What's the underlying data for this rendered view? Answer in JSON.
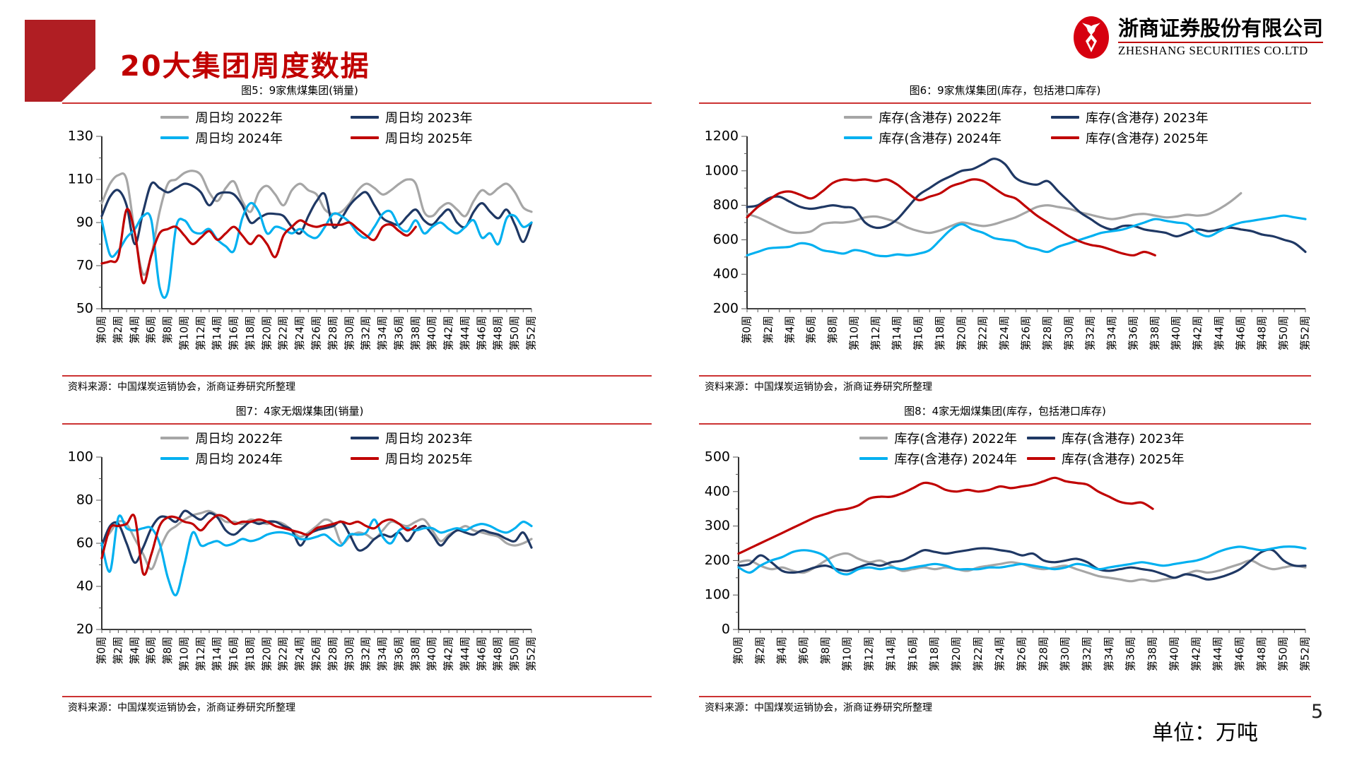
{
  "page": {
    "title": "20大集团周度数据",
    "unit_note": "单位：万吨",
    "page_number": "5",
    "logo": {
      "cn": "浙商证券股份有限公司",
      "en": "ZHESHANG SECURITIES CO.LTD"
    }
  },
  "colors": {
    "accent_red": "#c00000",
    "divider_red": "#cc3333",
    "gray": "#a6a6a6",
    "navy": "#1f3864",
    "cyan": "#00b0f0",
    "red": "#c00000"
  },
  "chart_data": [
    {
      "type": "line",
      "title": "图5：9家焦煤集团(销量)",
      "source": "资料来源：中国煤炭运销协会，浙商证券研究所整理",
      "xlabel": "",
      "ylabel": "",
      "ylim": [
        50,
        130
      ],
      "ytick_step": 20,
      "grid": false,
      "legend_position": "top",
      "x_tick_labels": [
        "第0周",
        "第2周",
        "第4周",
        "第6周",
        "第8周",
        "第10周",
        "第12周",
        "第14周",
        "第16周",
        "第18周",
        "第20周",
        "第22周",
        "第24周",
        "第26周",
        "第28周",
        "第30周",
        "第32周",
        "第34周",
        "第36周",
        "第38周",
        "第40周",
        "第42周",
        "第44周",
        "第46周",
        "第48周",
        "第50周",
        "第52周"
      ],
      "series": [
        {
          "name": "周日均 2022年",
          "color_key": "gray",
          "values": [
            99,
            108,
            112,
            110,
            85,
            66,
            75,
            95,
            108,
            110,
            113,
            114,
            112,
            104,
            100,
            106,
            109,
            100,
            95,
            104,
            107,
            103,
            98,
            105,
            108,
            105,
            103,
            96,
            94,
            95,
            99,
            105,
            108,
            106,
            103,
            105,
            108,
            110,
            108,
            95,
            93,
            97,
            99,
            96,
            93,
            100,
            105,
            103,
            106,
            108,
            104,
            97,
            95
          ]
        },
        {
          "name": "周日均 2023年",
          "color_key": "navy",
          "values": [
            93,
            102,
            105,
            98,
            80,
            95,
            108,
            106,
            104,
            106,
            108,
            107,
            104,
            98,
            103,
            104,
            103,
            98,
            90,
            92,
            94,
            94,
            93,
            88,
            85,
            93,
            100,
            103,
            88,
            92,
            98,
            102,
            104,
            98,
            92,
            90,
            89,
            93,
            96,
            91,
            89,
            93,
            96,
            90,
            88,
            95,
            99,
            95,
            92,
            96,
            89,
            81,
            90
          ]
        },
        {
          "name": "周日均 2024年",
          "color_key": "cyan",
          "values": [
            91,
            75,
            77,
            83,
            87,
            93,
            91,
            60,
            58,
            88,
            91,
            86,
            85,
            87,
            82,
            79,
            77,
            92,
            99,
            95,
            85,
            88,
            87,
            85,
            87,
            84,
            83,
            88,
            94,
            93,
            90,
            85,
            83,
            88,
            94,
            95,
            88,
            86,
            91,
            85,
            88,
            90,
            87,
            85,
            88,
            91,
            83,
            85,
            80,
            92,
            93,
            88,
            90
          ]
        },
        {
          "name": "周日均 2025年",
          "color_key": "red",
          "values": [
            71,
            72,
            74,
            96,
            85,
            62,
            75,
            85,
            87,
            88,
            84,
            80,
            83,
            86,
            82,
            85,
            88,
            84,
            80,
            84,
            80,
            74,
            84,
            88,
            91,
            89,
            88,
            89,
            89,
            89,
            90,
            87,
            84,
            82,
            88,
            89,
            86,
            84,
            88
          ]
        }
      ]
    },
    {
      "type": "line",
      "title": "图6：9家焦煤集团(库存，包括港口库存)",
      "source": "资料来源：中国煤炭运销协会，浙商证券研究所整理",
      "xlabel": "",
      "ylabel": "",
      "ylim": [
        200,
        1200
      ],
      "ytick_step": 200,
      "grid": false,
      "legend_position": "top",
      "x_tick_labels": [
        "第0周",
        "第2周",
        "第4周",
        "第6周",
        "第8周",
        "第10周",
        "第12周",
        "第14周",
        "第16周",
        "第18周",
        "第20周",
        "第22周",
        "第24周",
        "第26周",
        "第28周",
        "第30周",
        "第32周",
        "第34周",
        "第36周",
        "第38周",
        "第40周",
        "第42周",
        "第44周",
        "第46周",
        "第48周",
        "第50周",
        "第52周"
      ],
      "series": [
        {
          "name": "库存(含港存) 2022年",
          "color_key": "gray",
          "values": [
            750,
            730,
            700,
            670,
            645,
            640,
            650,
            690,
            700,
            700,
            710,
            730,
            735,
            720,
            700,
            670,
            650,
            640,
            655,
            680,
            700,
            690,
            680,
            690,
            710,
            730,
            760,
            790,
            800,
            790,
            780,
            760,
            745,
            730,
            720,
            730,
            745,
            750,
            740,
            730,
            735,
            745,
            740,
            750,
            780,
            820,
            870
          ]
        },
        {
          "name": "库存(含港存) 2023年",
          "color_key": "navy",
          "values": [
            790,
            800,
            840,
            850,
            820,
            790,
            780,
            790,
            800,
            790,
            780,
            700,
            670,
            680,
            720,
            790,
            860,
            900,
            940,
            970,
            1000,
            1010,
            1040,
            1070,
            1040,
            960,
            930,
            920,
            940,
            880,
            820,
            760,
            720,
            680,
            660,
            680,
            680,
            660,
            650,
            640,
            620,
            640,
            660,
            650,
            660,
            670,
            660,
            650,
            630,
            620,
            600,
            580,
            530
          ]
        },
        {
          "name": "库存(含港存) 2024年",
          "color_key": "cyan",
          "values": [
            510,
            530,
            550,
            555,
            560,
            580,
            570,
            540,
            530,
            520,
            540,
            530,
            510,
            505,
            515,
            510,
            520,
            540,
            600,
            660,
            690,
            660,
            640,
            610,
            600,
            590,
            560,
            545,
            530,
            560,
            580,
            600,
            620,
            640,
            650,
            660,
            680,
            700,
            720,
            710,
            700,
            690,
            640,
            620,
            650,
            680,
            700,
            710,
            720,
            730,
            740,
            730,
            720
          ]
        },
        {
          "name": "库存(含港存) 2025年",
          "color_key": "red",
          "values": [
            730,
            790,
            830,
            870,
            880,
            860,
            840,
            880,
            930,
            950,
            945,
            950,
            940,
            950,
            920,
            870,
            830,
            850,
            870,
            910,
            930,
            950,
            940,
            900,
            860,
            840,
            790,
            740,
            700,
            660,
            620,
            590,
            570,
            560,
            540,
            520,
            510,
            530,
            510
          ]
        }
      ]
    },
    {
      "type": "line",
      "title": "图7：4家无烟煤集团(销量)",
      "source": "资料来源：中国煤炭运销协会，浙商证券研究所整理",
      "xlabel": "",
      "ylabel": "",
      "ylim": [
        20,
        100
      ],
      "ytick_step": 20,
      "grid": false,
      "legend_position": "top",
      "x_tick_labels": [
        "第0周",
        "第2周",
        "第4周",
        "第6周",
        "第8周",
        "第10周",
        "第12周",
        "第14周",
        "第16周",
        "第18周",
        "第20周",
        "第22周",
        "第24周",
        "第26周",
        "第28周",
        "第30周",
        "第32周",
        "第34周",
        "第36周",
        "第38周",
        "第40周",
        "第42周",
        "第44周",
        "第46周",
        "第48周",
        "第50周",
        "第52周"
      ],
      "series": [
        {
          "name": "周日均 2022年",
          "color_key": "gray",
          "values": [
            60,
            65,
            70,
            69,
            62,
            55,
            48,
            57,
            65,
            68,
            71,
            73,
            74,
            75,
            73,
            70,
            70,
            69,
            71,
            70,
            69,
            70,
            69,
            66,
            63,
            65,
            68,
            71,
            69,
            60,
            63,
            65,
            64,
            62,
            66,
            70,
            69,
            68,
            70,
            71,
            66,
            61,
            64,
            66,
            68,
            66,
            65,
            64,
            63,
            60,
            59,
            60,
            62
          ]
        },
        {
          "name": "周日均 2023年",
          "color_key": "navy",
          "values": [
            59,
            68,
            69,
            60,
            51,
            58,
            67,
            72,
            72,
            70,
            75,
            73,
            71,
            74,
            72,
            66,
            64,
            67,
            70,
            69,
            70,
            70,
            68,
            66,
            59,
            64,
            66,
            67,
            68,
            70,
            64,
            57,
            58,
            62,
            64,
            63,
            65,
            61,
            66,
            68,
            64,
            59,
            63,
            66,
            65,
            64,
            66,
            65,
            64,
            62,
            61,
            65,
            58
          ]
        },
        {
          "name": "周日均 2024年",
          "color_key": "cyan",
          "values": [
            60,
            47,
            72,
            67,
            66,
            67,
            67,
            60,
            44,
            36,
            50,
            65,
            59,
            60,
            61,
            59,
            60,
            62,
            61,
            62,
            64,
            65,
            65,
            64,
            62,
            62,
            63,
            64,
            61,
            59,
            64,
            64,
            65,
            71,
            63,
            60,
            66,
            67,
            66,
            67,
            67,
            65,
            66,
            67,
            66,
            68,
            69,
            68,
            66,
            65,
            67,
            70,
            68
          ]
        },
        {
          "name": "周日均 2025年",
          "color_key": "red",
          "values": [
            53,
            67,
            68,
            69,
            72,
            46,
            55,
            68,
            72,
            72,
            70,
            69,
            66,
            70,
            73,
            72,
            69,
            70,
            70,
            71,
            70,
            68,
            67,
            66,
            65,
            64,
            67,
            68,
            69,
            70,
            69,
            70,
            68,
            67,
            70,
            71,
            69,
            66,
            68
          ]
        }
      ]
    },
    {
      "type": "line",
      "title": "图8：4家无烟煤集团(库存，包括港口库存)",
      "source": "资料来源：中国煤炭运销协会，浙商证券研究所整理",
      "xlabel": "",
      "ylabel": "",
      "ylim": [
        0,
        500
      ],
      "ytick_step": 100,
      "grid": false,
      "legend_position": "top",
      "x_tick_labels": [
        "第0周",
        "第2周",
        "第4周",
        "第6周",
        "第8周",
        "第10周",
        "第12周",
        "第14周",
        "第16周",
        "第18周",
        "第20周",
        "第22周",
        "第24周",
        "第26周",
        "第28周",
        "第30周",
        "第32周",
        "第34周",
        "第36周",
        "第38周",
        "第40周",
        "第42周",
        "第44周",
        "第46周",
        "第48周",
        "第50周",
        "第52周"
      ],
      "series": [
        {
          "name": "库存(含港存) 2022年",
          "color_key": "gray",
          "values": [
            195,
            200,
            185,
            175,
            180,
            170,
            165,
            180,
            200,
            215,
            220,
            205,
            195,
            200,
            185,
            170,
            175,
            180,
            175,
            180,
            175,
            170,
            180,
            185,
            190,
            195,
            190,
            180,
            175,
            180,
            185,
            175,
            165,
            155,
            150,
            145,
            140,
            145,
            140,
            145,
            150,
            160,
            170,
            165,
            170,
            180,
            190,
            200,
            185,
            175,
            180,
            185,
            180
          ]
        },
        {
          "name": "库存(含港存) 2023年",
          "color_key": "navy",
          "values": [
            185,
            190,
            215,
            195,
            170,
            165,
            170,
            180,
            185,
            175,
            170,
            180,
            190,
            185,
            195,
            200,
            215,
            230,
            225,
            220,
            225,
            230,
            235,
            235,
            230,
            225,
            215,
            220,
            200,
            195,
            200,
            205,
            195,
            175,
            170,
            175,
            180,
            175,
            170,
            160,
            150,
            160,
            155,
            145,
            150,
            160,
            175,
            200,
            225,
            230,
            200,
            185,
            185
          ]
        },
        {
          "name": "库存(含港存) 2024年",
          "color_key": "cyan",
          "values": [
            180,
            165,
            185,
            200,
            210,
            225,
            230,
            225,
            210,
            170,
            160,
            175,
            180,
            175,
            180,
            175,
            180,
            185,
            190,
            185,
            175,
            175,
            175,
            180,
            180,
            185,
            190,
            185,
            180,
            175,
            180,
            190,
            185,
            175,
            180,
            185,
            190,
            195,
            190,
            185,
            190,
            195,
            200,
            210,
            225,
            235,
            240,
            235,
            230,
            235,
            240,
            240,
            235
          ]
        },
        {
          "name": "库存(含港存) 2025年",
          "color_key": "red",
          "values": [
            220,
            235,
            250,
            265,
            280,
            295,
            310,
            325,
            335,
            345,
            350,
            360,
            380,
            385,
            385,
            395,
            410,
            425,
            420,
            405,
            400,
            405,
            400,
            405,
            415,
            410,
            415,
            420,
            430,
            440,
            430,
            425,
            420,
            400,
            385,
            370,
            365,
            368,
            350
          ]
        }
      ]
    }
  ]
}
